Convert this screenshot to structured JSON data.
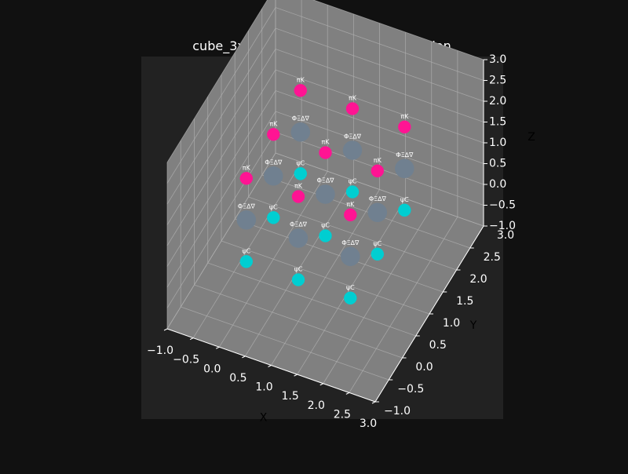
{
  "chart_data": {
    "type": "scatter",
    "projection": "3d",
    "title": "cube_3x3x3 – dynamische Feldoszillation",
    "xlabel": "X",
    "ylabel": "Y",
    "zlabel": "Z",
    "xlim": [
      -1.0,
      3.0
    ],
    "ylim": [
      -1.0,
      3.0
    ],
    "zlim": [
      -1.0,
      3.0
    ],
    "x_ticks": [
      "−1.0",
      "−0.5",
      "0.0",
      "0.5",
      "1.0",
      "1.5",
      "2.0",
      "2.5",
      "3.0"
    ],
    "y_ticks": [
      "−1.0",
      "−0.5",
      "0.0",
      "0.5",
      "1.0",
      "1.5",
      "2.0",
      "2.5",
      "3.0"
    ],
    "z_ticks": [
      "−1.0",
      "−0.5",
      "0.0",
      "0.5",
      "1.0",
      "1.5",
      "2.0",
      "2.5",
      "3.0"
    ],
    "grid": true,
    "colors": {
      "figure_background": "#111111",
      "axes_background": "#222222",
      "pane": "#808080",
      "grid": "#b0b0b0",
      "text": "#ffffff",
      "label": "#000000"
    },
    "series": [
      {
        "label": "ψC",
        "color": "#00ced1",
        "size": 8,
        "points": [
          {
            "x": 0,
            "y": 0,
            "z": 0
          },
          {
            "x": 1,
            "y": 0,
            "z": 0
          },
          {
            "x": 2,
            "y": 0,
            "z": 0
          },
          {
            "x": 0,
            "y": 1,
            "z": 0
          },
          {
            "x": 1,
            "y": 1,
            "z": 0
          },
          {
            "x": 2,
            "y": 1,
            "z": 0
          },
          {
            "x": 0,
            "y": 2,
            "z": 0
          },
          {
            "x": 1,
            "y": 2,
            "z": 0
          },
          {
            "x": 2,
            "y": 2,
            "z": 0
          }
        ]
      },
      {
        "label": "ΦΞ∆∇",
        "color": "#708090",
        "size": 12,
        "points": [
          {
            "x": 0,
            "y": 0,
            "z": 1
          },
          {
            "x": 1,
            "y": 0,
            "z": 1
          },
          {
            "x": 2,
            "y": 0,
            "z": 1
          },
          {
            "x": 0,
            "y": 1,
            "z": 1
          },
          {
            "x": 1,
            "y": 1,
            "z": 1
          },
          {
            "x": 2,
            "y": 1,
            "z": 1
          },
          {
            "x": 0,
            "y": 2,
            "z": 1
          },
          {
            "x": 1,
            "y": 2,
            "z": 1
          },
          {
            "x": 2,
            "y": 2,
            "z": 1
          }
        ]
      },
      {
        "label": "πK",
        "color": "#ff1493",
        "size": 8,
        "points": [
          {
            "x": 0,
            "y": 0,
            "z": 2
          },
          {
            "x": 1,
            "y": 0,
            "z": 2
          },
          {
            "x": 2,
            "y": 0,
            "z": 2
          },
          {
            "x": 0,
            "y": 1,
            "z": 2
          },
          {
            "x": 1,
            "y": 1,
            "z": 2
          },
          {
            "x": 2,
            "y": 1,
            "z": 2
          },
          {
            "x": 0,
            "y": 2,
            "z": 2
          },
          {
            "x": 1,
            "y": 2,
            "z": 2
          },
          {
            "x": 2,
            "y": 2,
            "z": 2
          }
        ]
      }
    ]
  }
}
